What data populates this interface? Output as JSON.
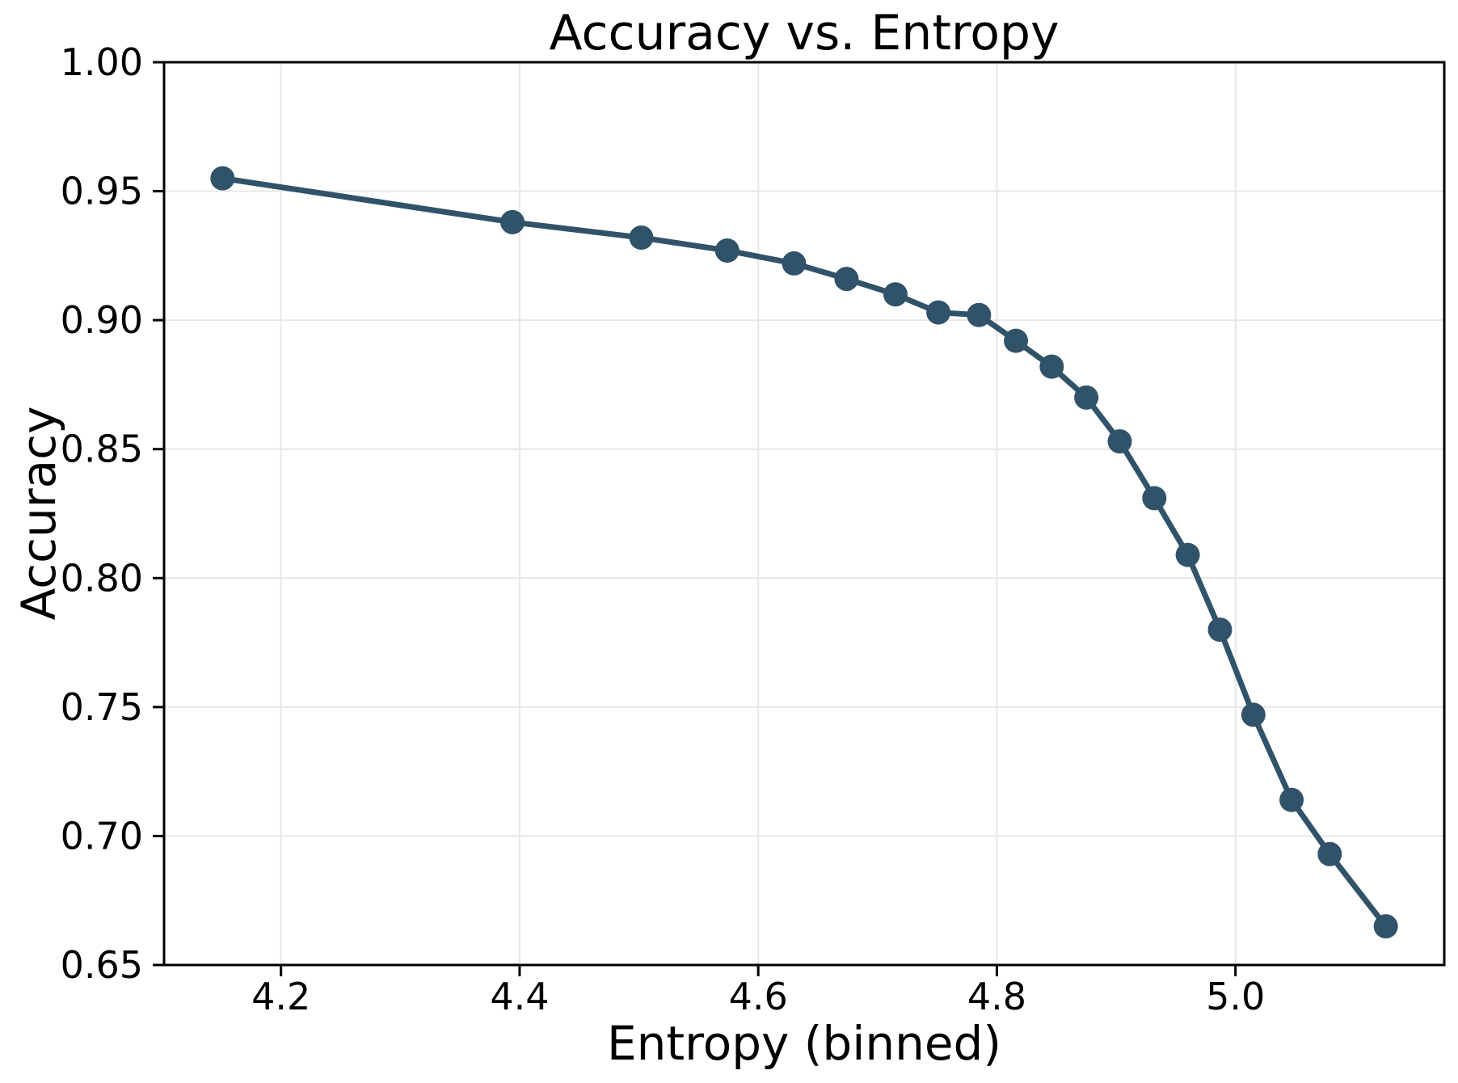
{
  "chart_data": {
    "type": "line",
    "title": "Accuracy vs. Entropy",
    "xlabel": "Entropy (binned)",
    "ylabel": "Accuracy",
    "series": [
      {
        "x": [
          4.151,
          4.394,
          4.502,
          4.574,
          4.63,
          4.674,
          4.715,
          4.751,
          4.785,
          4.816,
          4.846,
          4.875,
          4.903,
          4.932,
          4.96,
          4.987,
          5.015,
          5.047,
          5.079,
          5.126
        ],
        "y": [
          0.955,
          0.938,
          0.932,
          0.927,
          0.922,
          0.916,
          0.91,
          0.903,
          0.902,
          0.892,
          0.882,
          0.87,
          0.853,
          0.831,
          0.809,
          0.78,
          0.747,
          0.714,
          0.693,
          0.665
        ]
      }
    ],
    "xlim": [
      4.102,
      5.175
    ],
    "ylim": [
      0.65,
      1.0
    ],
    "xticks": {
      "values": [
        4.2,
        4.4,
        4.6,
        4.8,
        5.0
      ],
      "labels": [
        "4.2",
        "4.4",
        "4.6",
        "4.8",
        "5.0"
      ]
    },
    "yticks": {
      "values": [
        0.65,
        0.7,
        0.75,
        0.8,
        0.85,
        0.9,
        0.95,
        1.0
      ],
      "labels": [
        "0.65",
        "0.70",
        "0.75",
        "0.80",
        "0.85",
        "0.90",
        "0.95",
        "1.00"
      ]
    },
    "grid": true,
    "legend": false,
    "marker": "circle",
    "line_color": "#315369",
    "grid_color": "#E7E7E7",
    "spine_color": "#000000",
    "background": "#FFFFFF"
  }
}
